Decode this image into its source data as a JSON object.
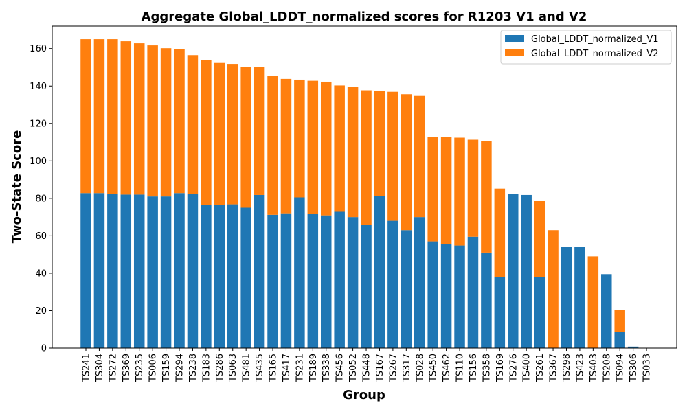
{
  "chart_data": {
    "type": "bar",
    "stacked": true,
    "title": "Aggregate Global_LDDT_normalized scores for R1203 V1 and V2",
    "xlabel": "Group",
    "ylabel": "Two-State Score",
    "ylim": [
      0,
      172
    ],
    "yticks": [
      0,
      20,
      40,
      60,
      80,
      100,
      120,
      140,
      160
    ],
    "legend_position": "top-right",
    "grid": false,
    "categories": [
      "TS241",
      "TS304",
      "TS272",
      "TS369",
      "TS235",
      "TS006",
      "TS159",
      "TS294",
      "TS238",
      "TS183",
      "TS286",
      "TS063",
      "TS481",
      "TS435",
      "TS165",
      "TS417",
      "TS231",
      "TS189",
      "TS338",
      "TS456",
      "TS052",
      "TS448",
      "TS167",
      "TS267",
      "TS317",
      "TS028",
      "TS450",
      "TS462",
      "TS110",
      "TS156",
      "TS358",
      "TS169",
      "TS276",
      "TS400",
      "TS261",
      "TS367",
      "TS298",
      "TS423",
      "TS403",
      "TS208",
      "TS094",
      "TS306",
      "TS033"
    ],
    "series": [
      {
        "name": "Global_LDDT_normalized_V1",
        "color": "#1f77b4",
        "values": [
          82.8,
          82.8,
          82.4,
          82.0,
          82.0,
          81.0,
          81.0,
          82.8,
          82.4,
          76.5,
          76.5,
          76.8,
          75.0,
          81.8,
          71.2,
          72.0,
          80.5,
          71.8,
          70.9,
          72.8,
          70.0,
          66.0,
          81.2,
          68.0,
          63.0,
          70.0,
          57.0,
          55.5,
          54.8,
          59.5,
          51.0,
          38.0,
          82.4,
          81.8,
          37.8,
          0,
          54.0,
          54.0,
          0,
          39.5,
          8.8,
          0.8,
          0
        ]
      },
      {
        "name": "Global_LDDT_normalized_V2",
        "color": "#ff7f0e",
        "values": [
          82.2,
          82.2,
          82.6,
          81.9,
          80.8,
          80.7,
          79.2,
          76.8,
          74.1,
          77.3,
          75.8,
          75.0,
          75.1,
          68.3,
          74.1,
          71.8,
          62.9,
          71.0,
          71.4,
          67.5,
          69.4,
          71.7,
          56.3,
          68.9,
          72.6,
          64.7,
          55.6,
          57.1,
          57.6,
          51.8,
          59.6,
          47.2,
          0,
          0,
          40.7,
          63.0,
          0,
          0,
          49.0,
          0,
          11.7,
          0,
          0
        ]
      }
    ]
  }
}
